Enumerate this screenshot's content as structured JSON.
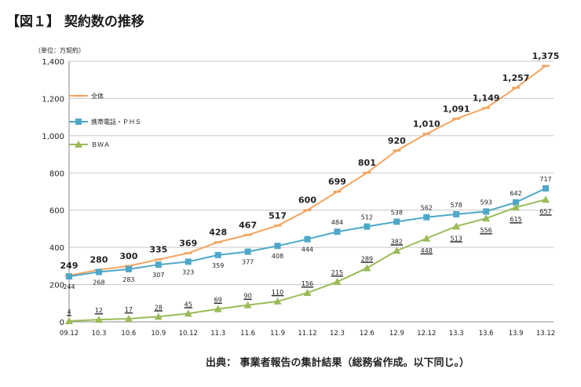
{
  "header": {
    "title": "【図１】 契約数の推移"
  },
  "footer": {
    "source": "出典：  事業者報告の集計結果（総務省作成。以下同じ。）"
  },
  "colors": {
    "all": "#f4a460",
    "mobile": "#4fa8c8",
    "bwa": "#9bbb59"
  },
  "chart_data": {
    "type": "line",
    "title": "【図１】 契約数の推移",
    "unit_label": "（単位：万契約）",
    "categories": [
      "09.12",
      "10.3",
      "10.6",
      "10.9",
      "10.12",
      "11.3",
      "11.6",
      "11.9",
      "11.12",
      "12.3",
      "12.6",
      "12.9",
      "12.12",
      "13.3",
      "13.6",
      "13.9",
      "13.12"
    ],
    "ylim": [
      0,
      1400
    ],
    "yticks": [
      0,
      200,
      400,
      600,
      800,
      1000,
      1200,
      1400
    ],
    "ytick_labels": [
      "0",
      "200",
      "400",
      "600",
      "800",
      "1,000",
      "1,200",
      "1,400"
    ],
    "grid": true,
    "legend_position": "left",
    "series": [
      {
        "name": "全体",
        "key": "all",
        "values": [
          249,
          280,
          300,
          335,
          369,
          428,
          467,
          517,
          600,
          699,
          801,
          920,
          1010,
          1091,
          1149,
          1257,
          1375
        ],
        "labels": [
          "249",
          "280",
          "300",
          "335",
          "369",
          "428",
          "467",
          "517",
          "600",
          "699",
          "801",
          "920",
          "1,010",
          "1,091",
          "1,149",
          "1,257",
          "1,375"
        ]
      },
      {
        "name": "携帯電話・ＰＨＳ",
        "key": "mobile",
        "values": [
          244,
          268,
          283,
          307,
          323,
          359,
          377,
          408,
          444,
          484,
          512,
          538,
          562,
          578,
          593,
          642,
          717
        ],
        "labels": [
          "244",
          "268",
          "283",
          "307",
          "323",
          "359",
          "377",
          "408",
          "444",
          "484",
          "512",
          "538",
          "562",
          "578",
          "593",
          "642",
          "717"
        ]
      },
      {
        "name": "ＢＷＡ",
        "key": "bwa",
        "values": [
          4,
          12,
          17,
          28,
          45,
          69,
          90,
          110,
          156,
          215,
          289,
          382,
          448,
          513,
          556,
          615,
          657
        ],
        "labels": [
          "4",
          "12",
          "17",
          "28",
          "45",
          "69",
          "90",
          "110",
          "156",
          "215",
          "289",
          "382",
          "448",
          "513",
          "556",
          "615",
          "657"
        ]
      }
    ]
  }
}
